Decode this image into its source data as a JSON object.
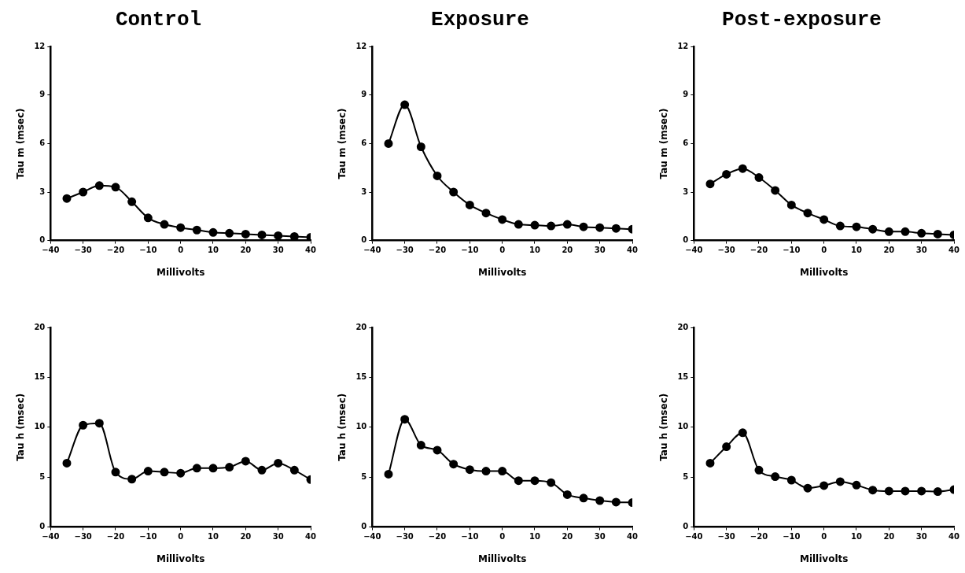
{
  "chart_data": [
    {
      "type": "line",
      "title": "Control",
      "xlabel": "Millivolts",
      "ylabel": "Tau m (msec)",
      "x": [
        -35,
        -30,
        -25,
        -20,
        -15,
        -10,
        -5,
        0,
        5,
        10,
        15,
        20,
        25,
        30,
        35,
        40
      ],
      "series": [
        {
          "color": "#000000",
          "values": [
            2.6,
            3.0,
            3.4,
            3.3,
            2.4,
            1.4,
            1.0,
            0.8,
            0.65,
            0.5,
            0.45,
            0.4,
            0.35,
            0.3,
            0.25,
            0.2
          ]
        }
      ],
      "xlim": [
        -40,
        40
      ],
      "xticks": [
        -40,
        -30,
        -20,
        -10,
        0,
        10,
        20,
        30,
        40
      ],
      "ylim": [
        0,
        12
      ],
      "yticks": [
        0,
        3,
        6,
        9,
        12
      ],
      "marker": "circle",
      "line_style": "solid"
    },
    {
      "type": "line",
      "title": "Exposure",
      "xlabel": "Millivolts",
      "ylabel": "Tau m (msec)",
      "x": [
        -35,
        -30,
        -25,
        -20,
        -15,
        -10,
        -5,
        0,
        5,
        10,
        15,
        20,
        25,
        30,
        35,
        40
      ],
      "series": [
        {
          "color": "#000000",
          "values": [
            6.0,
            8.4,
            5.8,
            4.0,
            3.0,
            2.2,
            1.7,
            1.3,
            1.0,
            0.95,
            0.9,
            1.0,
            0.85,
            0.8,
            0.75,
            0.7
          ]
        }
      ],
      "xlim": [
        -40,
        40
      ],
      "xticks": [
        -40,
        -30,
        -20,
        -10,
        0,
        10,
        20,
        30,
        40
      ],
      "ylim": [
        0,
        12
      ],
      "yticks": [
        0,
        3,
        6,
        9,
        12
      ],
      "marker": "circle",
      "line_style": "solid"
    },
    {
      "type": "line",
      "title": "Post-exposure",
      "xlabel": "Millivolts",
      "ylabel": "Tau m (msec)",
      "x": [
        -35,
        -30,
        -25,
        -20,
        -15,
        -10,
        -5,
        0,
        5,
        10,
        15,
        20,
        25,
        30,
        35,
        40
      ],
      "series": [
        {
          "color": "#000000",
          "values": [
            3.5,
            4.1,
            4.45,
            3.9,
            3.1,
            2.2,
            1.7,
            1.3,
            0.9,
            0.85,
            0.7,
            0.55,
            0.55,
            0.45,
            0.4,
            0.35
          ]
        }
      ],
      "xlim": [
        -40,
        40
      ],
      "xticks": [
        -40,
        -30,
        -20,
        -10,
        0,
        10,
        20,
        30,
        40
      ],
      "ylim": [
        0,
        12
      ],
      "yticks": [
        0,
        3,
        6,
        9,
        12
      ],
      "marker": "circle",
      "line_style": "solid"
    },
    {
      "type": "line",
      "xlabel": "Millivolts",
      "ylabel": "Tau h (msec)",
      "x": [
        -35,
        -30,
        -25,
        -20,
        -15,
        -10,
        -5,
        0,
        5,
        10,
        15,
        20,
        25,
        30,
        35,
        40
      ],
      "series": [
        {
          "color": "#000000",
          "values": [
            6.4,
            10.2,
            10.4,
            5.5,
            4.8,
            5.6,
            5.5,
            5.4,
            5.9,
            5.9,
            6.0,
            6.6,
            5.7,
            6.4,
            5.7,
            4.75
          ]
        }
      ],
      "xlim": [
        -40,
        40
      ],
      "xticks": [
        -40,
        -30,
        -20,
        -10,
        0,
        10,
        20,
        30,
        40
      ],
      "ylim": [
        0,
        20
      ],
      "yticks": [
        0,
        5,
        10,
        15,
        20
      ],
      "marker": "circle",
      "line_style": "solid"
    },
    {
      "type": "line",
      "xlabel": "Millivolts",
      "ylabel": "Tau h (msec)",
      "x": [
        -35,
        -30,
        -25,
        -20,
        -15,
        -10,
        -5,
        0,
        5,
        10,
        15,
        20,
        25,
        30,
        35,
        40
      ],
      "series": [
        {
          "color": "#000000",
          "values": [
            5.3,
            10.8,
            8.2,
            7.7,
            6.3,
            5.75,
            5.6,
            5.6,
            4.65,
            4.65,
            4.45,
            3.25,
            2.9,
            2.65,
            2.5,
            2.45
          ]
        }
      ],
      "xlim": [
        -40,
        40
      ],
      "xticks": [
        -40,
        -30,
        -20,
        -10,
        0,
        10,
        20,
        30,
        40
      ],
      "ylim": [
        0,
        20
      ],
      "yticks": [
        0,
        5,
        10,
        15,
        20
      ],
      "marker": "circle",
      "line_style": "solid"
    },
    {
      "type": "line",
      "xlabel": "Millivolts",
      "ylabel": "Tau h (msec)",
      "x": [
        -35,
        -30,
        -25,
        -20,
        -15,
        -10,
        -5,
        0,
        5,
        10,
        15,
        20,
        25,
        30,
        35,
        40
      ],
      "series": [
        {
          "color": "#000000",
          "values": [
            6.4,
            8.05,
            9.45,
            5.7,
            5.05,
            4.7,
            3.9,
            4.15,
            4.55,
            4.2,
            3.7,
            3.6,
            3.6,
            3.6,
            3.55,
            3.75
          ]
        }
      ],
      "xlim": [
        -40,
        40
      ],
      "xticks": [
        -40,
        -30,
        -20,
        -10,
        0,
        10,
        20,
        30,
        40
      ],
      "ylim": [
        0,
        20
      ],
      "yticks": [
        0,
        5,
        10,
        15,
        20
      ],
      "marker": "circle",
      "line_style": "solid"
    }
  ]
}
